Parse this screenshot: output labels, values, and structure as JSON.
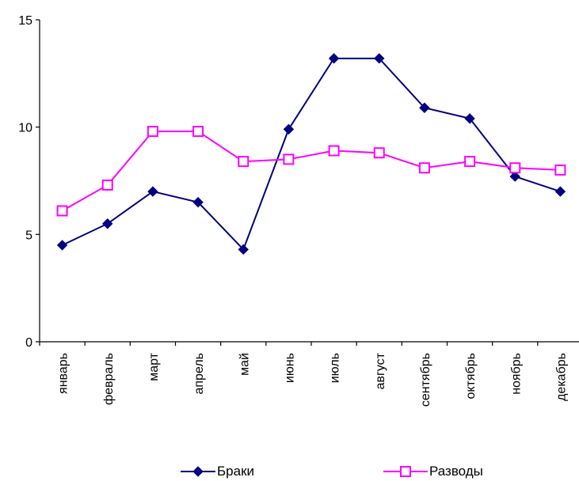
{
  "chart_data": {
    "type": "line",
    "categories": [
      "январь",
      "февраль",
      "март",
      "апрель",
      "май",
      "июнь",
      "июль",
      "август",
      "сентябрь",
      "октябрь",
      "ноябрь",
      "декабрь"
    ],
    "series": [
      {
        "name": "Браки",
        "color": "#000080",
        "marker": "diamond-filled",
        "values": [
          4.5,
          5.5,
          7.0,
          6.5,
          4.3,
          9.9,
          13.2,
          13.2,
          10.9,
          10.4,
          7.7,
          7.0
        ]
      },
      {
        "name": "Разводы",
        "color": "#FF00FF",
        "marker": "square-hollow",
        "values": [
          6.1,
          7.3,
          9.8,
          9.8,
          8.4,
          8.5,
          8.9,
          8.8,
          8.1,
          8.4,
          8.1,
          8.0
        ]
      }
    ],
    "yticks": [
      0,
      5,
      10,
      15
    ],
    "ylim": [
      0,
      15
    ],
    "title": "",
    "xlabel": "",
    "ylabel": "",
    "grid": false,
    "legend": "bottom"
  }
}
